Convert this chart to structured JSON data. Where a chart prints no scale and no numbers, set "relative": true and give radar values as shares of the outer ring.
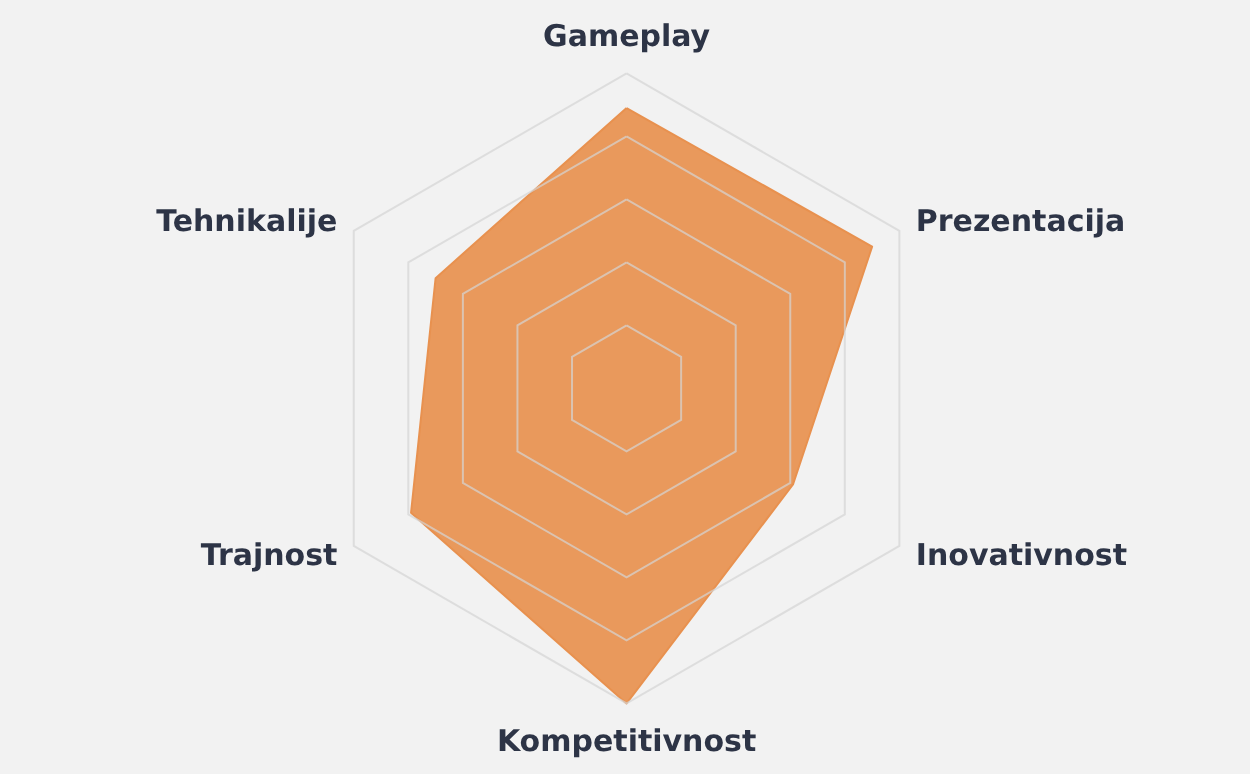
{
  "chart_data": {
    "type": "radar",
    "relative": true,
    "grid": true,
    "categories": [
      "Gameplay",
      "Prezentacija",
      "Inovativnost",
      "Kompetitivnost",
      "Trajnost",
      "Tehnikalije"
    ],
    "series": [
      {
        "color": "#e8914f",
        "values": [
          0.89,
          0.9,
          0.61,
          1.0,
          0.79,
          0.7
        ]
      }
    ]
  }
}
